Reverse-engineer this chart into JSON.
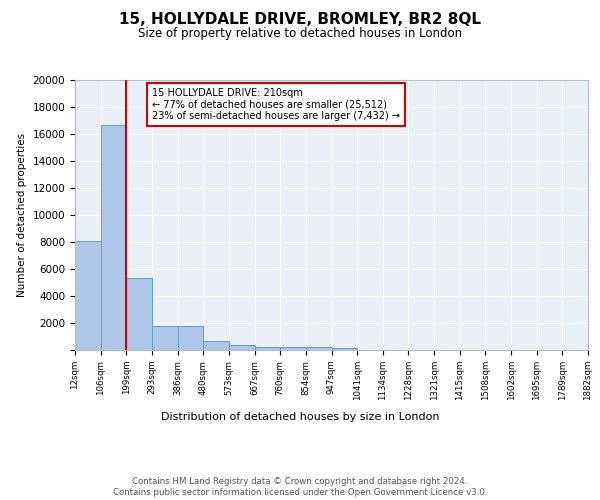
{
  "title": "15, HOLLYDALE DRIVE, BROMLEY, BR2 8QL",
  "subtitle": "Size of property relative to detached houses in London",
  "xlabel": "Distribution of detached houses by size in London",
  "ylabel": "Number of detached properties",
  "bar_color": "#aec6e8",
  "bar_edge_color": "#5a9fd4",
  "background_color": "#eaf0f8",
  "bin_labels": [
    "12sqm",
    "106sqm",
    "199sqm",
    "293sqm",
    "386sqm",
    "480sqm",
    "573sqm",
    "667sqm",
    "760sqm",
    "854sqm",
    "947sqm",
    "1041sqm",
    "1134sqm",
    "1228sqm",
    "1321sqm",
    "1415sqm",
    "1508sqm",
    "1602sqm",
    "1695sqm",
    "1789sqm",
    "1882sqm"
  ],
  "bar_heights": [
    8100,
    16700,
    5300,
    1800,
    1800,
    700,
    350,
    250,
    220,
    200,
    180,
    0,
    0,
    0,
    0,
    0,
    0,
    0,
    0,
    0,
    0
  ],
  "annotation_text": "15 HOLLYDALE DRIVE: 210sqm\n← 77% of detached houses are smaller (25,512)\n23% of semi-detached houses are larger (7,432) →",
  "vline_x": 2,
  "vline_color": "#cc0000",
  "annot_box_edge": "#cc0000",
  "ylim": [
    0,
    20000
  ],
  "yticks": [
    0,
    2000,
    4000,
    6000,
    8000,
    10000,
    12000,
    14000,
    16000,
    18000,
    20000
  ],
  "footer_line1": "Contains HM Land Registry data © Crown copyright and database right 2024.",
  "footer_line2": "Contains public sector information licensed under the Open Government Licence v3.0."
}
